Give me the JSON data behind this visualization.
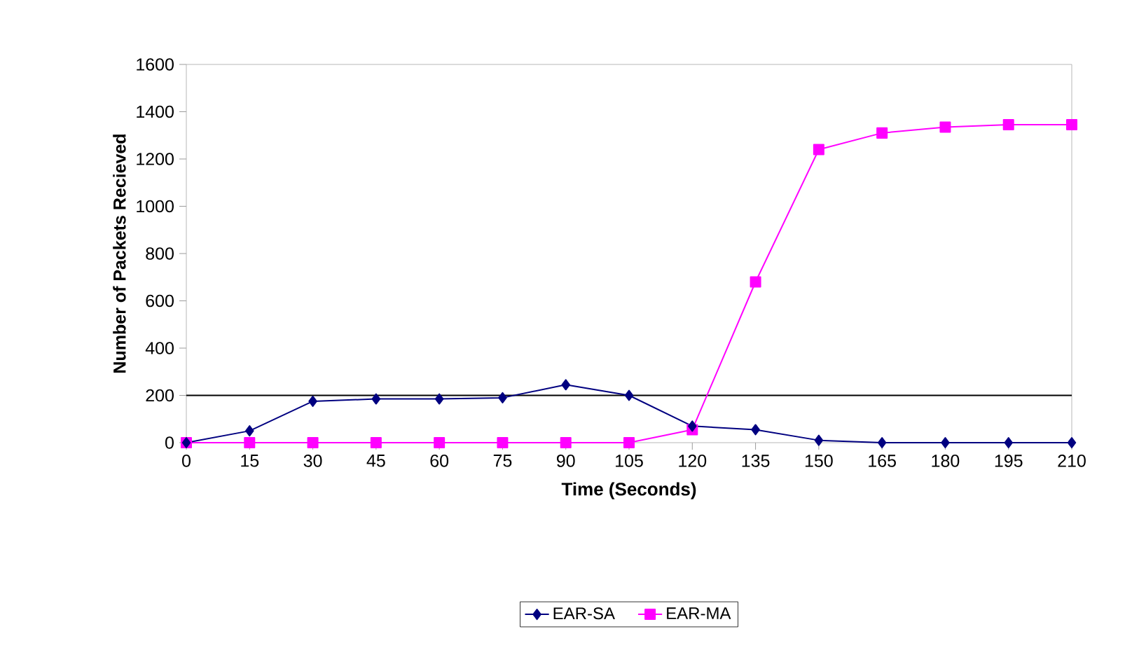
{
  "chart_data": {
    "type": "line",
    "xlabel": "Time (Seconds)",
    "ylabel": "Number of Packets Recieved",
    "x": [
      0,
      15,
      30,
      45,
      60,
      75,
      90,
      105,
      120,
      135,
      150,
      165,
      180,
      195,
      210
    ],
    "xlim": [
      0,
      210
    ],
    "xticks": [
      0,
      15,
      30,
      45,
      60,
      75,
      90,
      105,
      120,
      135,
      150,
      165,
      180,
      195,
      210
    ],
    "ylim": [
      0,
      1600
    ],
    "yticks": [
      0,
      200,
      400,
      600,
      800,
      1000,
      1200,
      1400,
      1600
    ],
    "series": [
      {
        "name": "EAR-SA",
        "color": "#000080",
        "marker": "diamond",
        "values": [
          0,
          50,
          175,
          185,
          185,
          190,
          245,
          200,
          70,
          55,
          10,
          0,
          0,
          0,
          0
        ]
      },
      {
        "name": "EAR-MA",
        "color": "#ff00ff",
        "marker": "square",
        "values": [
          0,
          0,
          0,
          0,
          0,
          0,
          0,
          0,
          55,
          680,
          1240,
          1310,
          1335,
          1345,
          1345
        ]
      }
    ],
    "ref_lines": [
      {
        "axis": "y",
        "value": 200,
        "color": "#000000"
      }
    ],
    "grid": false,
    "legend": "bottom",
    "line_style": "solid"
  }
}
